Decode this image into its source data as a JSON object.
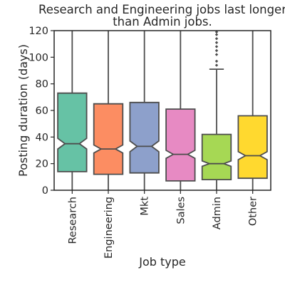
{
  "chart_data": {
    "type": "boxplot",
    "notched": true,
    "title": "Research and Engineering jobs last longer than Admin jobs.",
    "title_lines": [
      "Research and Engineering jobs last longer",
      "than Admin jobs."
    ],
    "xlabel": "Job type",
    "ylabel": "Posting duration (days)",
    "ylim": [
      0,
      120
    ],
    "yticks": [
      0,
      20,
      40,
      60,
      80,
      100,
      120
    ],
    "grid": false,
    "categories": [
      "Research",
      "Engineering",
      "Mkt",
      "Sales",
      "Admin",
      "Other"
    ],
    "colors": [
      "#66c2a5",
      "#fc8d62",
      "#8da0cb",
      "#e78ac3",
      "#a6d854",
      "#ffd92f"
    ],
    "edge_color": "#4d4d4d",
    "boxes": [
      {
        "category": "Research",
        "whisker_low": 0,
        "q1": 14,
        "median": 35,
        "q3": 73,
        "whisker_high": 120,
        "notch_low": 31,
        "notch_high": 39,
        "outliers": []
      },
      {
        "category": "Engineering",
        "whisker_low": 0,
        "q1": 12,
        "median": 31,
        "q3": 65,
        "whisker_high": 120,
        "notch_low": 28,
        "notch_high": 34,
        "outliers": []
      },
      {
        "category": "Mkt",
        "whisker_low": 0,
        "q1": 13,
        "median": 33,
        "q3": 66,
        "whisker_high": 120,
        "notch_low": 29,
        "notch_high": 37,
        "outliers": []
      },
      {
        "category": "Sales",
        "whisker_low": 0,
        "q1": 7,
        "median": 27,
        "q3": 61,
        "whisker_high": 120,
        "notch_low": 24,
        "notch_high": 30,
        "outliers": []
      },
      {
        "category": "Admin",
        "whisker_low": 0,
        "q1": 8,
        "median": 20,
        "q3": 42,
        "whisker_high": 91,
        "notch_low": 18,
        "notch_high": 22,
        "outliers": [
          94,
          97,
          102,
          105,
          108,
          111,
          114,
          117,
          119
        ]
      },
      {
        "category": "Other",
        "whisker_low": 0,
        "q1": 9,
        "median": 26,
        "q3": 56,
        "whisker_high": 120,
        "notch_low": 23,
        "notch_high": 29,
        "outliers": []
      }
    ]
  }
}
